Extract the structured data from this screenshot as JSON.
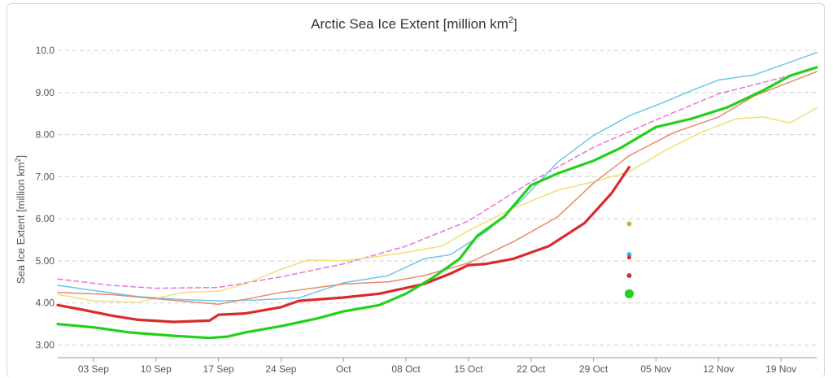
{
  "chart_data": {
    "type": "line",
    "title": "Arctic Sea Ice Extent [million km",
    "title_sup": "2",
    "title_end": "]",
    "ylabel": "Sea Ice Extent [million km",
    "ylabel_sup": "2",
    "ylabel_end": "]",
    "ylim": [
      2.7,
      10.35
    ],
    "yticks": [
      3.0,
      4.0,
      5.0,
      6.0,
      7.0,
      8.0,
      9.0,
      10.0
    ],
    "ytick_labels": [
      "3.00",
      "4.00",
      "5.00",
      "6.00",
      "7.00",
      "8.00",
      "9.00",
      "10.0"
    ],
    "xlim": [
      "2018-08-30",
      "2018-11-23"
    ],
    "xticks": [
      {
        "date": "2018-09-03",
        "label": "03 Sep"
      },
      {
        "date": "2018-09-10",
        "label": "10 Sep"
      },
      {
        "date": "2018-09-17",
        "label": "17 Sep"
      },
      {
        "date": "2018-09-24",
        "label": "24 Sep"
      },
      {
        "date": "2018-10-01",
        "label": "Oct"
      },
      {
        "date": "2018-10-08",
        "label": "08 Oct"
      },
      {
        "date": "2018-10-15",
        "label": "15 Oct"
      },
      {
        "date": "2018-10-22",
        "label": "22 Oct"
      },
      {
        "date": "2018-10-29",
        "label": "29 Oct"
      },
      {
        "date": "2018-11-05",
        "label": "05 Nov"
      },
      {
        "date": "2018-11-12",
        "label": "12 Nov"
      },
      {
        "date": "2018-11-19",
        "label": "19 Nov"
      }
    ],
    "grid": true,
    "series": [
      {
        "color": "#e875d8",
        "dashed": true,
        "x": [
          "2018-08-30",
          "2018-09-05",
          "2018-09-10",
          "2018-09-17",
          "2018-09-24",
          "2018-10-01",
          "2018-10-08",
          "2018-10-15",
          "2018-10-22",
          "2018-10-29",
          "2018-11-05",
          "2018-11-12",
          "2018-11-19",
          "2018-11-23"
        ],
        "values": [
          4.57,
          4.42,
          4.35,
          4.37,
          4.62,
          4.93,
          5.35,
          5.95,
          6.88,
          7.7,
          8.35,
          8.97,
          9.35,
          9.58
        ]
      },
      {
        "color": "#6cc7e6",
        "x": [
          "2018-08-30",
          "2018-09-03",
          "2018-09-08",
          "2018-09-13",
          "2018-09-17",
          "2018-09-21",
          "2018-09-26",
          "2018-10-01",
          "2018-10-06",
          "2018-10-10",
          "2018-10-13",
          "2018-10-17",
          "2018-10-21",
          "2018-10-25",
          "2018-10-29",
          "2018-11-02",
          "2018-11-06",
          "2018-11-09",
          "2018-11-12",
          "2018-11-16",
          "2018-11-20",
          "2018-11-23"
        ],
        "values": [
          4.42,
          4.3,
          4.15,
          4.08,
          4.05,
          4.07,
          4.12,
          4.48,
          4.65,
          5.05,
          5.15,
          5.7,
          6.45,
          7.35,
          7.98,
          8.45,
          8.78,
          9.05,
          9.3,
          9.42,
          9.72,
          9.95
        ]
      },
      {
        "color": "#f0e078",
        "x": [
          "2018-08-30",
          "2018-09-03",
          "2018-09-08",
          "2018-09-13",
          "2018-09-17",
          "2018-09-20",
          "2018-09-24",
          "2018-09-27",
          "2018-10-01",
          "2018-10-04",
          "2018-10-08",
          "2018-10-12",
          "2018-10-15",
          "2018-10-20",
          "2018-10-25",
          "2018-10-29",
          "2018-11-02",
          "2018-11-06",
          "2018-11-10",
          "2018-11-14",
          "2018-11-17",
          "2018-11-20",
          "2018-11-23"
        ],
        "values": [
          4.2,
          4.05,
          4.02,
          4.25,
          4.28,
          4.45,
          4.8,
          5.02,
          5.0,
          5.08,
          5.2,
          5.35,
          5.72,
          6.25,
          6.68,
          6.88,
          7.12,
          7.62,
          8.05,
          8.38,
          8.42,
          8.28,
          8.63
        ]
      },
      {
        "color": "#e8896a",
        "x": [
          "2018-08-30",
          "2018-09-05",
          "2018-09-10",
          "2018-09-17",
          "2018-09-24",
          "2018-10-01",
          "2018-10-06",
          "2018-10-10",
          "2018-10-15",
          "2018-10-20",
          "2018-10-25",
          "2018-10-29",
          "2018-11-02",
          "2018-11-07",
          "2018-11-12",
          "2018-11-16",
          "2018-11-20",
          "2018-11-23"
        ],
        "values": [
          4.25,
          4.2,
          4.1,
          3.97,
          4.25,
          4.45,
          4.5,
          4.65,
          4.95,
          5.45,
          6.05,
          6.85,
          7.5,
          8.05,
          8.42,
          8.92,
          9.25,
          9.5
        ]
      },
      {
        "color": "#d92b2b",
        "x": [
          "2018-08-30",
          "2018-09-02",
          "2018-09-05",
          "2018-09-08",
          "2018-09-12",
          "2018-09-16",
          "2018-09-17",
          "2018-09-20",
          "2018-09-24",
          "2018-09-26",
          "2018-10-01",
          "2018-10-05",
          "2018-10-10",
          "2018-10-13",
          "2018-10-15",
          "2018-10-17",
          "2018-10-20",
          "2018-10-24",
          "2018-10-28",
          "2018-10-31",
          "2018-11-02"
        ],
        "values": [
          3.95,
          3.83,
          3.7,
          3.6,
          3.55,
          3.58,
          3.72,
          3.75,
          3.9,
          4.05,
          4.13,
          4.22,
          4.45,
          4.7,
          4.9,
          4.93,
          5.05,
          5.35,
          5.9,
          6.6,
          7.23
        ]
      },
      {
        "color": "#22d11a",
        "x": [
          "2018-08-30",
          "2018-09-03",
          "2018-09-07",
          "2018-09-12",
          "2018-09-16",
          "2018-09-18",
          "2018-09-20",
          "2018-09-24",
          "2018-09-28",
          "2018-10-01",
          "2018-10-05",
          "2018-10-08",
          "2018-10-11",
          "2018-10-14",
          "2018-10-16",
          "2018-10-19",
          "2018-10-22",
          "2018-10-25",
          "2018-10-29",
          "2018-11-01",
          "2018-11-05",
          "2018-11-09",
          "2018-11-13",
          "2018-11-17",
          "2018-11-20",
          "2018-11-23"
        ],
        "values": [
          3.5,
          3.42,
          3.3,
          3.22,
          3.17,
          3.2,
          3.3,
          3.45,
          3.63,
          3.8,
          3.95,
          4.22,
          4.6,
          5.05,
          5.6,
          6.05,
          6.8,
          7.08,
          7.38,
          7.68,
          8.18,
          8.38,
          8.65,
          9.05,
          9.4,
          9.6
        ]
      }
    ],
    "points": [
      {
        "date": "2018-11-02",
        "value": 5.88,
        "color": "#d4b13b",
        "r": 3
      },
      {
        "date": "2018-11-02",
        "value": 5.15,
        "color": "#3bb6e0",
        "r": 3
      },
      {
        "date": "2018-11-02",
        "value": 5.08,
        "color": "#d92b2b",
        "r": 2.5
      },
      {
        "date": "2018-11-02",
        "value": 4.65,
        "color": "#d92b2b",
        "r": 3
      },
      {
        "date": "2018-11-02",
        "value": 4.22,
        "color": "#22d11a",
        "r": 5.5
      }
    ]
  }
}
